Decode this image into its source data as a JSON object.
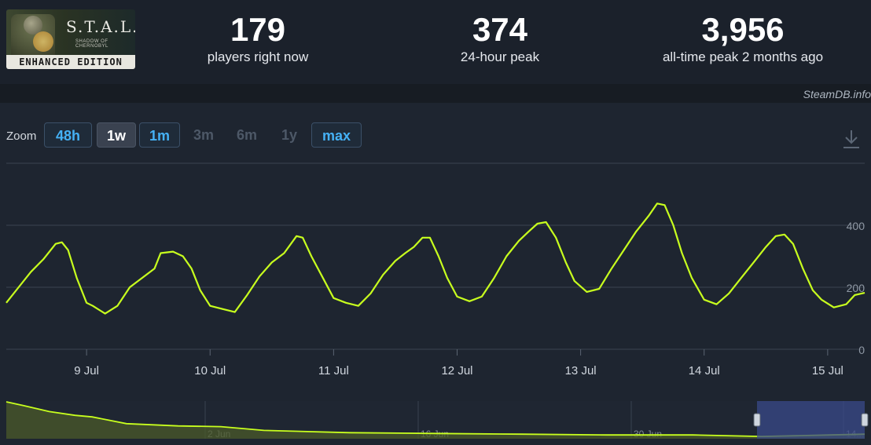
{
  "game": {
    "logo_title": "S.T.A.L.K.E.R.",
    "logo_subtitle": "SHADOW OF CHERNOBYL",
    "logo_edition": "ENHANCED EDITION"
  },
  "stats": [
    {
      "value": "179",
      "label": "players right now"
    },
    {
      "value": "374",
      "label": "24-hour peak"
    },
    {
      "value": "3,956",
      "label": "all-time peak 2 months ago"
    }
  ],
  "credit": "SteamDB.info",
  "zoom": {
    "label": "Zoom",
    "buttons": [
      {
        "label": "48h",
        "state": "enabled"
      },
      {
        "label": "1w",
        "state": "selected"
      },
      {
        "label": "1m",
        "state": "enabled"
      },
      {
        "label": "3m",
        "state": "disabled"
      },
      {
        "label": "6m",
        "state": "disabled"
      },
      {
        "label": "1y",
        "state": "disabled"
      },
      {
        "label": "max",
        "state": "enabled"
      }
    ]
  },
  "icons": {
    "download": "download-icon"
  },
  "colors": {
    "line": "#c8ff1e",
    "accent": "#45b1f5",
    "navigator_selection": "#3a4a8a"
  },
  "chart_data": {
    "type": "line",
    "title": "",
    "xlabel": "",
    "ylabel": "",
    "grid": true,
    "x_ticks": [
      "9 Jul",
      "10 Jul",
      "11 Jul",
      "12 Jul",
      "13 Jul",
      "14 Jul",
      "15 Jul"
    ],
    "y_ticks": [
      0,
      200,
      400
    ],
    "x_range_days": [
      8.35,
      15.3
    ],
    "ylim": [
      0,
      600
    ],
    "series": [
      {
        "name": "",
        "points": [
          [
            8.35,
            150
          ],
          [
            8.45,
            200
          ],
          [
            8.55,
            250
          ],
          [
            8.65,
            290
          ],
          [
            8.75,
            340
          ],
          [
            8.8,
            345
          ],
          [
            8.85,
            320
          ],
          [
            8.92,
            230
          ],
          [
            9.0,
            150
          ],
          [
            9.05,
            140
          ],
          [
            9.15,
            115
          ],
          [
            9.25,
            140
          ],
          [
            9.35,
            200
          ],
          [
            9.45,
            230
          ],
          [
            9.55,
            260
          ],
          [
            9.6,
            310
          ],
          [
            9.7,
            315
          ],
          [
            9.78,
            300
          ],
          [
            9.85,
            260
          ],
          [
            9.92,
            190
          ],
          [
            10.0,
            140
          ],
          [
            10.1,
            130
          ],
          [
            10.2,
            120
          ],
          [
            10.3,
            175
          ],
          [
            10.4,
            235
          ],
          [
            10.5,
            280
          ],
          [
            10.6,
            310
          ],
          [
            10.7,
            365
          ],
          [
            10.75,
            360
          ],
          [
            10.82,
            300
          ],
          [
            10.9,
            240
          ],
          [
            11.0,
            165
          ],
          [
            11.1,
            150
          ],
          [
            11.2,
            140
          ],
          [
            11.3,
            180
          ],
          [
            11.4,
            240
          ],
          [
            11.5,
            285
          ],
          [
            11.58,
            310
          ],
          [
            11.65,
            330
          ],
          [
            11.72,
            360
          ],
          [
            11.78,
            360
          ],
          [
            11.85,
            300
          ],
          [
            11.92,
            230
          ],
          [
            12.0,
            170
          ],
          [
            12.1,
            155
          ],
          [
            12.2,
            170
          ],
          [
            12.3,
            230
          ],
          [
            12.4,
            300
          ],
          [
            12.5,
            350
          ],
          [
            12.58,
            380
          ],
          [
            12.65,
            405
          ],
          [
            12.72,
            410
          ],
          [
            12.8,
            360
          ],
          [
            12.88,
            280
          ],
          [
            12.95,
            220
          ],
          [
            13.05,
            185
          ],
          [
            13.15,
            195
          ],
          [
            13.25,
            260
          ],
          [
            13.35,
            320
          ],
          [
            13.45,
            380
          ],
          [
            13.55,
            430
          ],
          [
            13.62,
            470
          ],
          [
            13.68,
            465
          ],
          [
            13.75,
            400
          ],
          [
            13.82,
            310
          ],
          [
            13.9,
            230
          ],
          [
            14.0,
            160
          ],
          [
            14.1,
            145
          ],
          [
            14.2,
            180
          ],
          [
            14.3,
            230
          ],
          [
            14.4,
            280
          ],
          [
            14.5,
            330
          ],
          [
            14.58,
            365
          ],
          [
            14.65,
            370
          ],
          [
            14.72,
            340
          ],
          [
            14.8,
            260
          ],
          [
            14.88,
            190
          ],
          [
            14.95,
            160
          ],
          [
            15.05,
            135
          ],
          [
            15.15,
            145
          ],
          [
            15.22,
            175
          ],
          [
            15.3,
            182
          ]
        ]
      }
    ],
    "navigator": {
      "x_ticks": [
        "2 Jun",
        "16 Jun",
        "30 Jun",
        "14..."
      ],
      "series": [
        {
          "name": "",
          "points": [
            [
              0.0,
              0.98
            ],
            [
              0.02,
              0.88
            ],
            [
              0.05,
              0.72
            ],
            [
              0.08,
              0.62
            ],
            [
              0.1,
              0.58
            ],
            [
              0.14,
              0.4
            ],
            [
              0.2,
              0.34
            ],
            [
              0.25,
              0.32
            ],
            [
              0.3,
              0.22
            ],
            [
              0.4,
              0.16
            ],
            [
              0.5,
              0.14
            ],
            [
              0.6,
              0.12
            ],
            [
              0.7,
              0.1
            ],
            [
              0.8,
              0.1
            ],
            [
              0.88,
              0.06
            ],
            [
              0.92,
              0.08
            ],
            [
              0.96,
              0.1
            ],
            [
              1.0,
              0.12
            ]
          ]
        }
      ]
    }
  }
}
